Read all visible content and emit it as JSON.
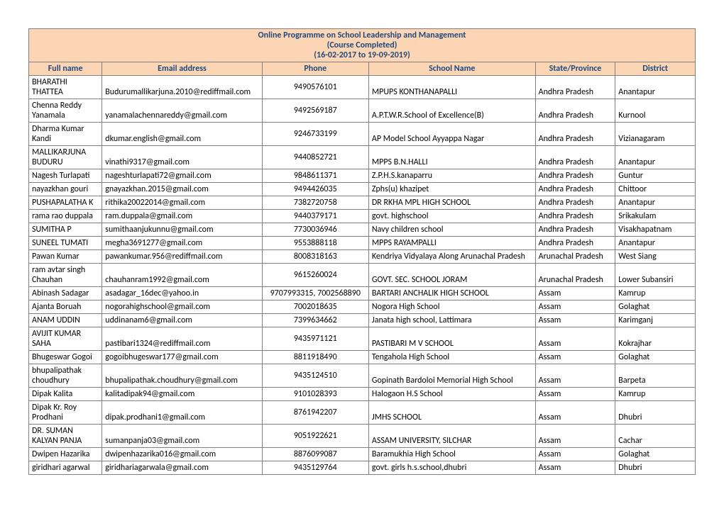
{
  "title_line1": "Online Programme on School Leadership and Management",
  "title_line2": "(Course Completed)",
  "title_line3": "(16-02-2017 to 19-09-2019)",
  "columns": [
    "Full name",
    "Email address",
    "Phone",
    "School Name",
    "State/Province",
    "District"
  ],
  "rows": [
    {
      "name": "BHARATHI THATTEA",
      "email": "Budurumallikarjuna.2010@rediffmail.com",
      "phone": "9490576101",
      "school": "MPUPS KONTHANAPALLI",
      "state": "Andhra Pradesh",
      "district": "Anantapur"
    },
    {
      "name": "Chenna Reddy Yanamala",
      "email": "yanamalachennareddy@gmail.com",
      "phone": "9492569187",
      "school": "A.P.T.W.R.School of Excellence(B)",
      "state": "Andhra Pradesh",
      "district": "Kurnool"
    },
    {
      "name": "Dharma Kumar Kandi",
      "email": "dkumar.english@gmail.com",
      "phone": "9246733199",
      "school": "AP Model School Ayyappa Nagar",
      "state": "Andhra Pradesh",
      "district": "Vizianagaram"
    },
    {
      "name": "MALLIKARJUNA BUDURU",
      "email": "vinathi9317@gmail.com",
      "phone": "9440852721",
      "school": "MPPS    B.N.HALLI",
      "state": "Andhra Pradesh",
      "district": "Anantapur"
    },
    {
      "name": "Nagesh Turlapati",
      "email": "nageshturlapati72@gmail.com",
      "phone": "9848611371",
      "school": "Z.P.H.S.kanaparru",
      "state": "Andhra Pradesh",
      "district": "Guntur"
    },
    {
      "name": "nayazkhan gouri",
      "email": "gnayazkhan.2015@gmail.com",
      "phone": "9494426035",
      "school": "Zphs(u) khazipet",
      "state": "Andhra Pradesh",
      "district": "Chittoor"
    },
    {
      "name": "PUSHAPALATHA K",
      "email": "rithika20022014@gmail.com",
      "phone": "7382720758",
      "school": "DR RKHA MPL HIGH SCHOOL",
      "state": "Andhra Pradesh",
      "district": "Anantapur"
    },
    {
      "name": "rama rao duppala",
      "email": "ram.duppala@gmail.com",
      "phone": "9440379171",
      "school": "govt. highschool",
      "state": "Andhra Pradesh",
      "district": "Srikakulam"
    },
    {
      "name": "SUMITHA P",
      "email": "sumithaanjukunnu@gmail.com",
      "phone": "7730036946",
      "school": "Navy children school",
      "state": "Andhra Pradesh",
      "district": "Visakhapatnam"
    },
    {
      "name": "SUNEEL TUMATI",
      "email": "megha3691277@gmail.com",
      "phone": "9553888118",
      "school": "MPPS RAYAMPALLI",
      "state": "Andhra Pradesh",
      "district": "Anantapur"
    },
    {
      "name": "Pawan Kumar",
      "email": "pawankumar.956@rediffmail.com",
      "phone": "8008318163",
      "school": "Kendriya Vidyalaya Along Arunachal Pradesh",
      "state": "Arunachal Pradesh",
      "district": "West Siang"
    },
    {
      "name": "ram avtar singh Chauhan",
      "email": "chauhanram1992@gmail.com",
      "phone": "9615260024",
      "school": "GOVT. SEC. SCHOOL JORAM",
      "state": "Arunachal Pradesh",
      "district": "Lower Subansiri"
    },
    {
      "name": "Abinash Sadagar",
      "email": "asadagar_16dec@yahoo.in",
      "phone": "9707993315, 7002568890",
      "school": "BARTARI ANCHALIK HIGH SCHOOL",
      "state": "Assam",
      "district": "Kamrup"
    },
    {
      "name": "Ajanta Boruah",
      "email": "nogorahighschool@gmail.com",
      "phone": "7002018635",
      "school": "Nogora High School",
      "state": "Assam",
      "district": "Golaghat"
    },
    {
      "name": "ANAM UDDIN",
      "email": "uddinanam6@gmail.com",
      "phone": "7399634662",
      "school": "Janata high school, Lattimara",
      "state": "Assam",
      "district": "Karimganj"
    },
    {
      "name": "AVIJIT KUMAR SAHA",
      "email": "pastibari1324@rediffmail.com",
      "phone": "9435971121",
      "school": "PASTIBARI M V SCHOOL",
      "state": "Assam",
      "district": "Kokrajhar"
    },
    {
      "name": "Bhugeswar Gogoi",
      "email": "gogoibhugeswar177@gmail.com",
      "phone": "8811918490",
      "school": "Tengahola High School",
      "state": "Assam",
      "district": "Golaghat"
    },
    {
      "name": "bhupalipathak choudhury",
      "email": "bhupalipathak.choudhury@gmail.com",
      "phone": "9435124510",
      "school": "Gopinath Bardoloi Memorial High School",
      "state": "Assam",
      "district": "Barpeta"
    },
    {
      "name": "Dipak Kalita",
      "email": "kalitadipak94@gmail.com",
      "phone": "9101028393",
      "school": "Halogaon H.S School",
      "state": "Assam",
      "district": "Kamrup"
    },
    {
      "name": "Dipak Kr. Roy Prodhani",
      "email": "dipak.prodhani1@gmail.com",
      "phone": "8761942207",
      "school": "JMHS SCHOOL",
      "state": "Assam",
      "district": "Dhubri"
    },
    {
      "name": "DR. SUMAN KALYAN PANJA",
      "email": "sumanpanja03@gmail.com",
      "phone": "9051922621",
      "school": " ASSAM UNIVERSITY, SILCHAR",
      "state": "Assam",
      "district": "Cachar"
    },
    {
      "name": "Dwipen Hazarika",
      "email": "dwipenhazarika016@gmail.com",
      "phone": "8876099087",
      "school": "Baramukhia High School",
      "state": "Assam",
      "district": "Golaghat"
    },
    {
      "name": "giridhari agarwal",
      "email": "giridhariagarwala@gmail.com",
      "phone": "9435129764",
      "school": "govt. girls h.s.school,dhubri",
      "state": "Assam",
      "district": "Dhubri"
    }
  ]
}
